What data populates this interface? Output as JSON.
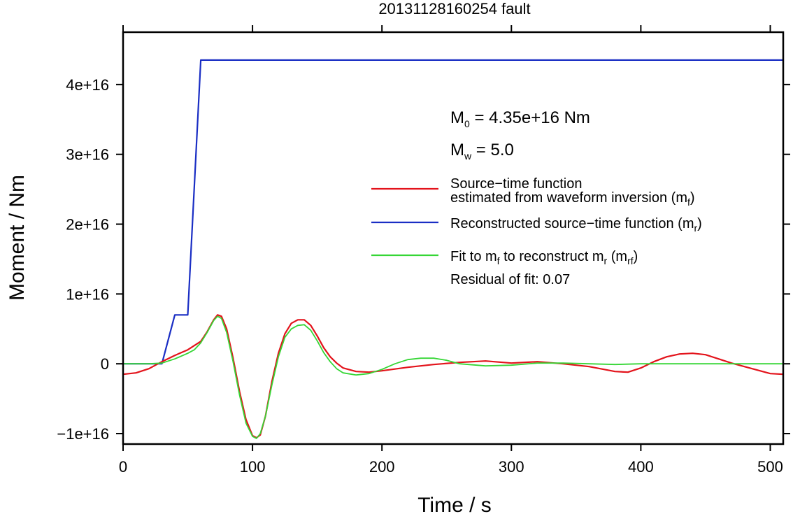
{
  "chart_data": {
    "type": "line",
    "title": "20131128160254 fault",
    "xlabel": "Time / s",
    "ylabel": "Moment / Nm",
    "xlim": [
      0,
      510
    ],
    "ylim": [
      -1.15e+16,
      4.75e+16
    ],
    "xticks": [
      0,
      100,
      200,
      300,
      400,
      500
    ],
    "xtick_labels": [
      "0",
      "100",
      "200",
      "300",
      "400",
      "500"
    ],
    "yticks": [
      -1e+16,
      0,
      1e+16,
      2e+16,
      3e+16,
      4e+16
    ],
    "ytick_labels": [
      "−1e+16",
      "0",
      "1e+16",
      "2e+16",
      "3e+16",
      "4e+16"
    ],
    "grid": false,
    "legend_position": "right",
    "annotations": {
      "m0": {
        "main": "M",
        "sub": "0",
        "rest": " = 4.35e+16 Nm"
      },
      "mw": {
        "main": "M",
        "sub": "w",
        "rest": " = 5.0"
      }
    },
    "series": [
      {
        "name_line1": "Source−time function",
        "name_line2": "estimated from waveform inversion (m",
        "name_sub": "f",
        "name_end": ")",
        "color": "#e3131b",
        "x": [
          0,
          10,
          20,
          30,
          40,
          50,
          60,
          65,
          70,
          73,
          76,
          80,
          85,
          90,
          95,
          100,
          103,
          106,
          110,
          115,
          120,
          125,
          130,
          135,
          140,
          145,
          150,
          155,
          160,
          165,
          170,
          180,
          190,
          200,
          220,
          240,
          260,
          280,
          300,
          320,
          340,
          360,
          380,
          390,
          400,
          410,
          420,
          430,
          440,
          450,
          460,
          470,
          480,
          490,
          500,
          510
        ],
        "y": [
          -1500000000000000.0,
          -1300000000000000.0,
          -700000000000000.0,
          300000000000000.0,
          1200000000000000.0,
          2000000000000000.0,
          3200000000000000.0,
          4600000000000000.0,
          6300000000000000.0,
          7000000000000000.0,
          6800000000000000.0,
          5000000000000000.0,
          800000000000000.0,
          -4000000000000000.0,
          -8000000000000000.0,
          -1.03e+16,
          -1.06e+16,
          -1.02e+16,
          -7500000000000000.0,
          -2500000000000000.0,
          1500000000000000.0,
          4300000000000000.0,
          5800000000000000.0,
          6300000000000000.0,
          6300000000000000.0,
          5500000000000000.0,
          4000000000000000.0,
          2300000000000000.0,
          1000000000000000.0,
          100000000000000.0,
          -600000000000000.0,
          -1100000000000000.0,
          -1200000000000000.0,
          -1000000000000000.0,
          -500000000000000.0,
          -100000000000000.0,
          200000000000000.0,
          400000000000000.0,
          100000000000000.0,
          300000000000000.0,
          0.0,
          -400000000000000.0,
          -1100000000000000.0,
          -1200000000000000.0,
          -600000000000000.0,
          300000000000000.0,
          1000000000000000.0,
          1400000000000000.0,
          1500000000000000.0,
          1300000000000000.0,
          700000000000000.0,
          100000000000000.0,
          -400000000000000.0,
          -900000000000000.0,
          -1400000000000000.0,
          -1500000000000000.0
        ]
      },
      {
        "name_line1": "Reconstructed source−time function (m",
        "name_sub": "r",
        "name_end": ")",
        "color": "#1a2ec4",
        "x": [
          0,
          30,
          40,
          50,
          60,
          510
        ],
        "y": [
          0,
          0,
          7000000000000000.0,
          7000000000000000.0,
          4.35e+16,
          4.35e+16
        ]
      },
      {
        "name_line1": "Fit to m",
        "name_sub1": "f",
        "name_mid": " to reconstruct m",
        "name_sub2": "r",
        "name_mid2": " (m",
        "name_sub3": "rf",
        "name_end": ")",
        "color": "#36d636",
        "x": [
          0,
          20,
          30,
          40,
          50,
          55,
          60,
          65,
          70,
          73,
          76,
          80,
          85,
          90,
          95,
          100,
          103,
          106,
          110,
          115,
          120,
          125,
          130,
          135,
          140,
          145,
          150,
          155,
          160,
          165,
          170,
          180,
          190,
          200,
          210,
          220,
          230,
          240,
          250,
          260,
          280,
          300,
          320,
          340,
          360,
          380,
          400,
          420,
          440,
          460,
          480,
          500,
          510
        ],
        "y": [
          0,
          0,
          100000000000000.0,
          700000000000000.0,
          1500000000000000.0,
          2000000000000000.0,
          3000000000000000.0,
          4500000000000000.0,
          6200000000000000.0,
          6800000000000000.0,
          6500000000000000.0,
          4500000000000000.0,
          300000000000000.0,
          -4500000000000000.0,
          -8500000000000000.0,
          -1.04e+16,
          -1.07e+16,
          -1e+16,
          -7500000000000000.0,
          -3000000000000000.0,
          1000000000000000.0,
          3800000000000000.0,
          5000000000000000.0,
          5500000000000000.0,
          5600000000000000.0,
          4800000000000000.0,
          3300000000000000.0,
          1600000000000000.0,
          300000000000000.0,
          -700000000000000.0,
          -1300000000000000.0,
          -1600000000000000.0,
          -1400000000000000.0,
          -800000000000000.0,
          0.0,
          600000000000000.0,
          800000000000000.0,
          800000000000000.0,
          500000000000000.0,
          0.0,
          -300000000000000.0,
          -200000000000000.0,
          100000000000000.0,
          100000000000000.0,
          0.0,
          -100000000000000.0,
          0.0,
          0.0,
          0.0,
          0.0,
          0.0,
          0.0,
          0.0
        ]
      }
    ],
    "residual_text": "Residual of fit: 0.07"
  }
}
